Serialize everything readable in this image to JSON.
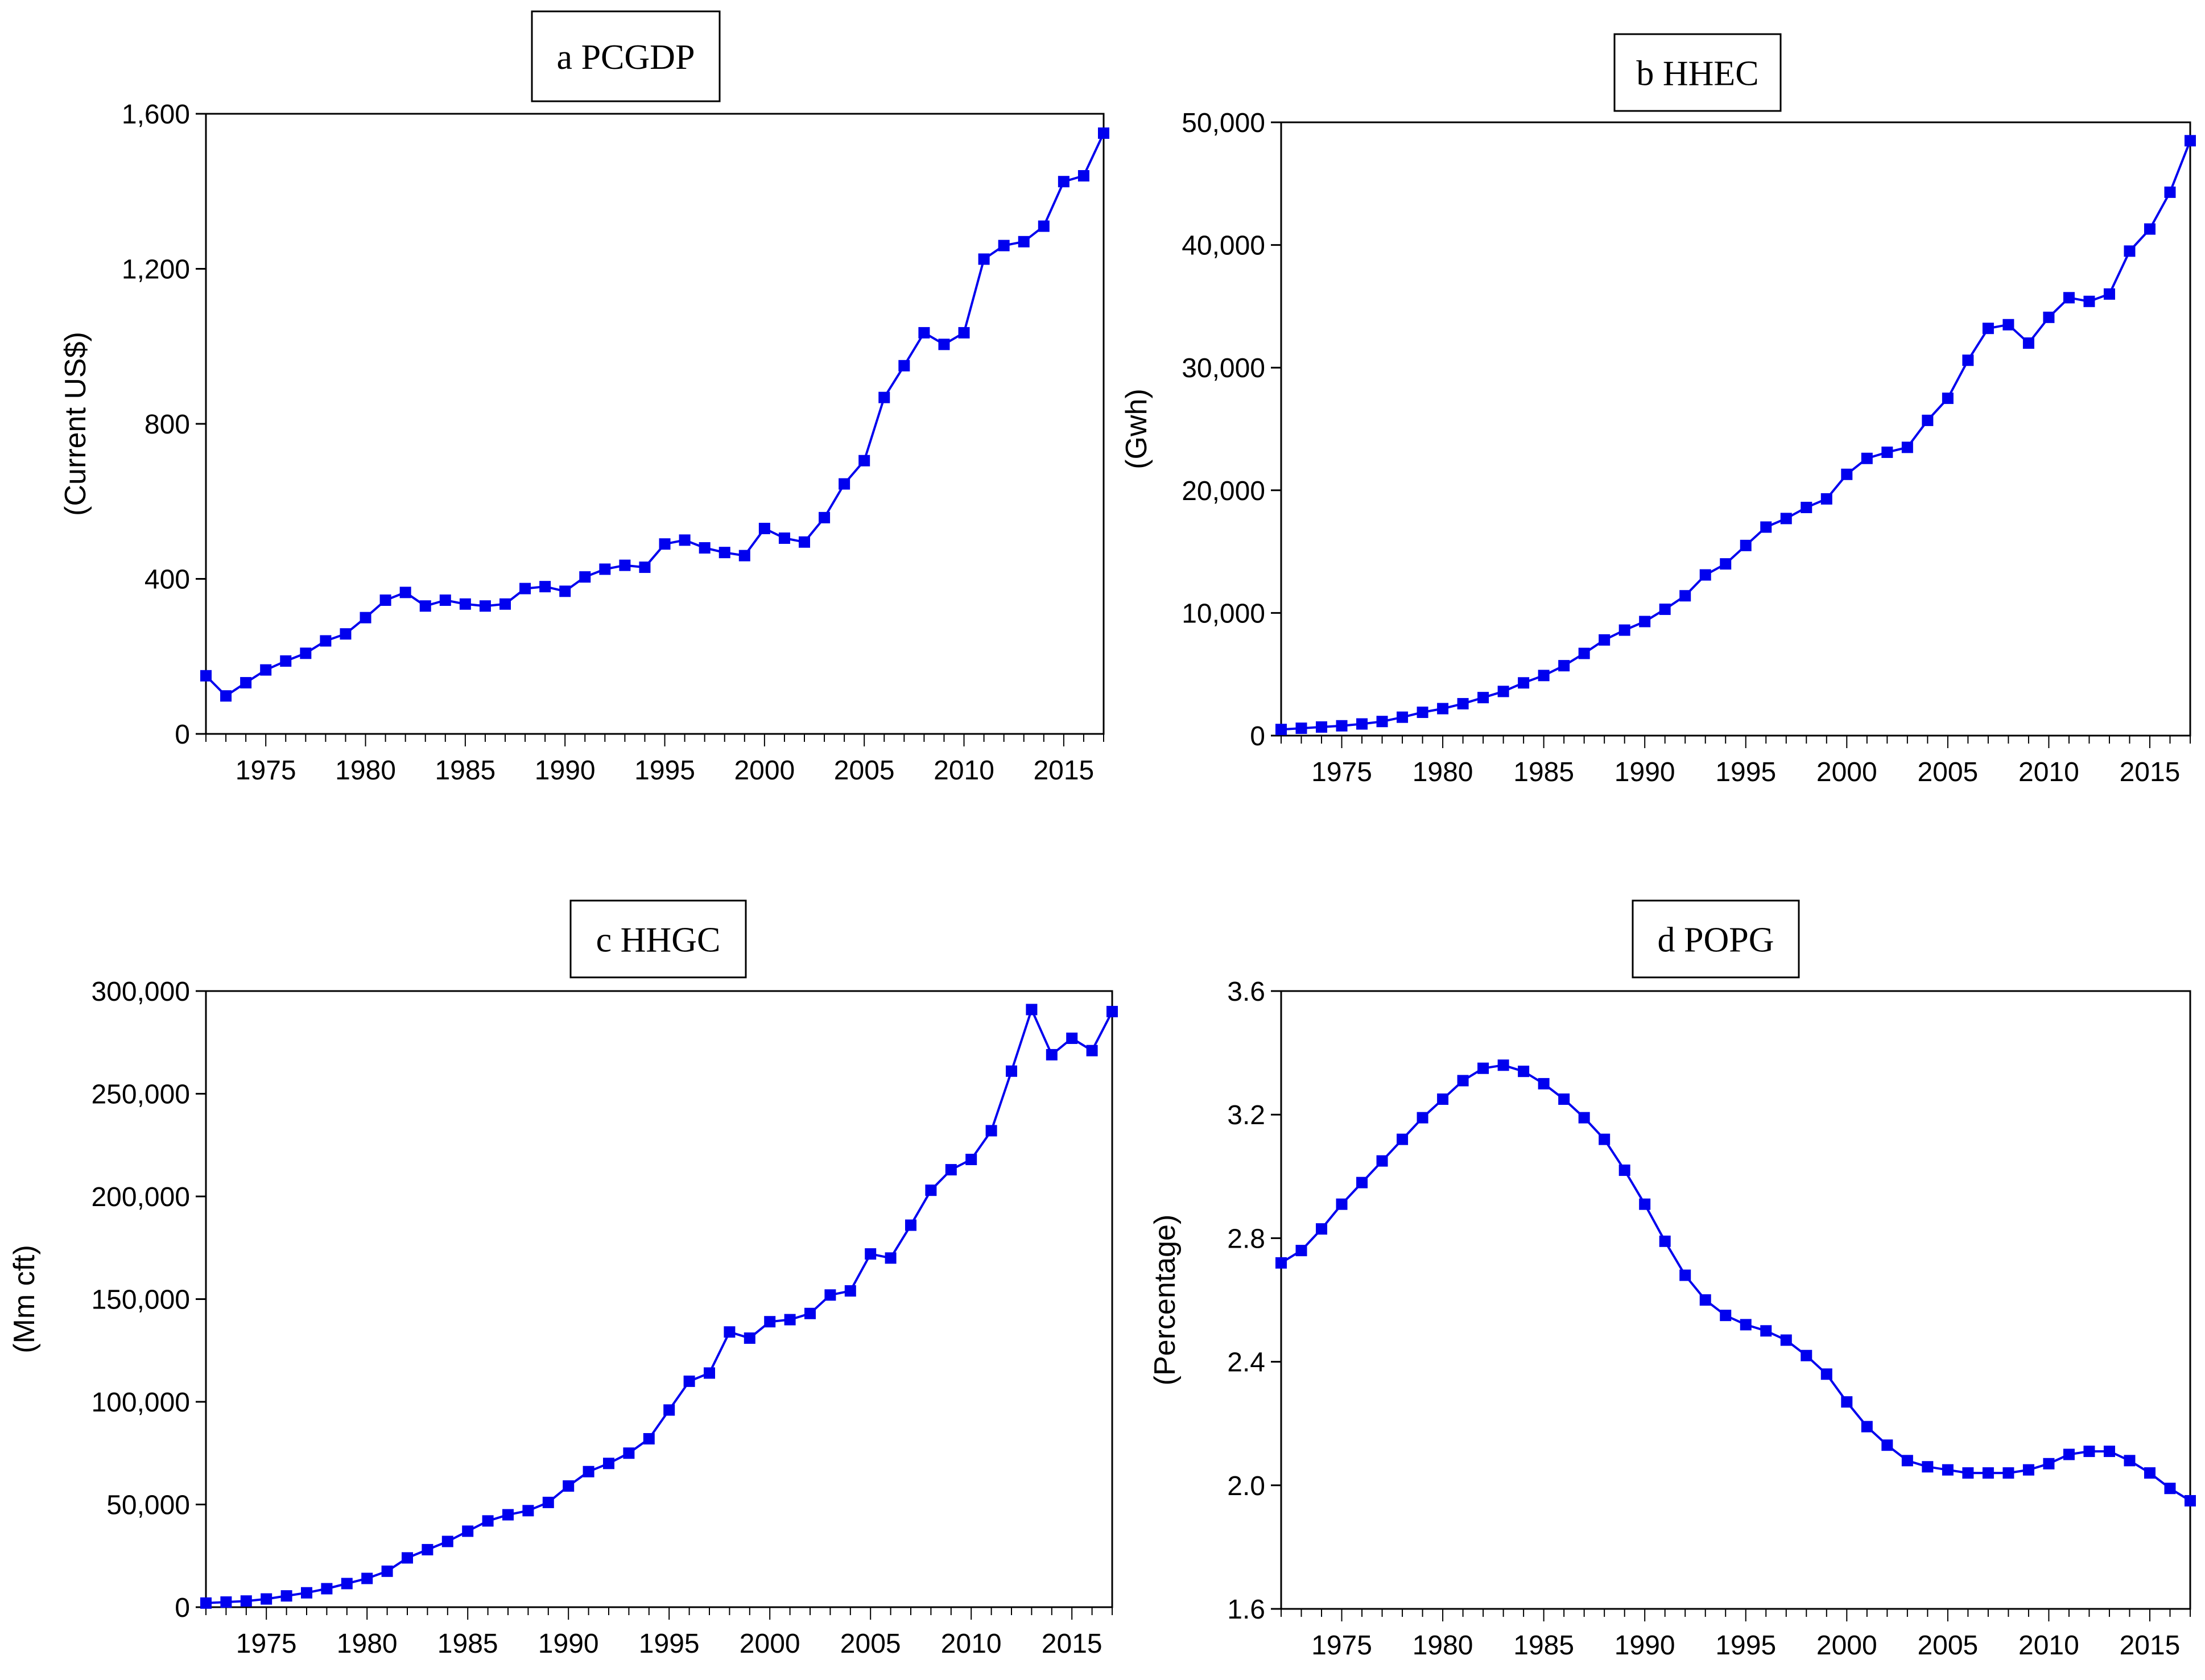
{
  "figure": {
    "x_tick_labels": [
      "1975",
      "1980",
      "1985",
      "1990",
      "1995",
      "2000",
      "2005",
      "2010",
      "2015"
    ],
    "series_color": "#0000ee"
  },
  "chart_data": [
    {
      "type": "line",
      "title": "a PCGDP",
      "ylabel": "(Current US$)",
      "xlabel": "",
      "xlim": [
        1972,
        2017
      ],
      "ylim": [
        0,
        1600
      ],
      "yticks": [
        0,
        400,
        800,
        1200,
        1600
      ],
      "ytick_labels": [
        "0",
        "400",
        "800",
        "1,200",
        "1,600"
      ],
      "x": [
        1972,
        1973,
        1974,
        1975,
        1976,
        1977,
        1978,
        1979,
        1980,
        1981,
        1982,
        1983,
        1984,
        1985,
        1986,
        1987,
        1988,
        1989,
        1990,
        1991,
        1992,
        1993,
        1994,
        1995,
        1996,
        1997,
        1998,
        1999,
        2000,
        2001,
        2002,
        2003,
        2004,
        2005,
        2006,
        2007,
        2008,
        2009,
        2010,
        2011,
        2012,
        2013,
        2014,
        2015,
        2016,
        2017
      ],
      "values": [
        150,
        98,
        132,
        165,
        188,
        208,
        240,
        258,
        300,
        345,
        365,
        330,
        345,
        335,
        330,
        335,
        375,
        380,
        368,
        405,
        425,
        435,
        430,
        490,
        500,
        480,
        468,
        460,
        530,
        505,
        495,
        558,
        645,
        705,
        868,
        950,
        1035,
        1005,
        1035,
        1225,
        1260,
        1270,
        1310,
        1425,
        1440,
        1550
      ]
    },
    {
      "type": "line",
      "title": "b HHEC",
      "ylabel": "(Gwh)",
      "xlabel": "",
      "xlim": [
        1972,
        2017
      ],
      "ylim": [
        0,
        50000
      ],
      "yticks": [
        0,
        10000,
        20000,
        30000,
        40000,
        50000
      ],
      "ytick_labels": [
        "0",
        "10,000",
        "20,000",
        "30,000",
        "40,000",
        "50,000"
      ],
      "x": [
        1972,
        1973,
        1974,
        1975,
        1976,
        1977,
        1978,
        1979,
        1980,
        1981,
        1982,
        1983,
        1984,
        1985,
        1986,
        1987,
        1988,
        1989,
        1990,
        1991,
        1992,
        1993,
        1994,
        1995,
        1996,
        1997,
        1998,
        1999,
        2000,
        2001,
        2002,
        2003,
        2004,
        2005,
        2006,
        2007,
        2008,
        2009,
        2010,
        2011,
        2012,
        2013,
        2014,
        2015,
        2016,
        2017
      ],
      "values": [
        500,
        600,
        700,
        800,
        950,
        1150,
        1500,
        1900,
        2200,
        2600,
        3100,
        3600,
        4300,
        4900,
        5700,
        6700,
        7800,
        8600,
        9300,
        10300,
        11400,
        13100,
        14000,
        15500,
        17000,
        17700,
        18600,
        19300,
        21300,
        22600,
        23100,
        23500,
        25700,
        27500,
        30600,
        33200,
        33500,
        32000,
        34100,
        35700,
        35400,
        36000,
        39500,
        41300,
        44300,
        48500
      ]
    },
    {
      "type": "line",
      "title": "c HHGC",
      "ylabel": "(Mm cft)",
      "xlabel": "",
      "xlim": [
        1972,
        2017
      ],
      "ylim": [
        0,
        300000
      ],
      "yticks": [
        0,
        50000,
        100000,
        150000,
        200000,
        250000,
        300000
      ],
      "ytick_labels": [
        "0",
        "50,000",
        "100,000",
        "150,000",
        "200,000",
        "250,000",
        "300,000"
      ],
      "x": [
        1972,
        1973,
        1974,
        1975,
        1976,
        1977,
        1978,
        1979,
        1980,
        1981,
        1982,
        1983,
        1984,
        1985,
        1986,
        1987,
        1988,
        1989,
        1990,
        1991,
        1992,
        1993,
        1994,
        1995,
        1996,
        1997,
        1998,
        1999,
        2000,
        2001,
        2002,
        2003,
        2004,
        2005,
        2006,
        2007,
        2008,
        2009,
        2010,
        2011,
        2012,
        2013,
        2014,
        2015,
        2016,
        2017
      ],
      "values": [
        2000,
        2500,
        3000,
        4000,
        5500,
        7000,
        9000,
        11500,
        14000,
        17500,
        24000,
        28000,
        32000,
        37000,
        42000,
        45000,
        47000,
        51000,
        59000,
        66000,
        70000,
        75000,
        82000,
        96000,
        110000,
        114000,
        134000,
        131000,
        139000,
        140000,
        143000,
        152000,
        154000,
        172000,
        170000,
        186000,
        203000,
        213000,
        218000,
        232000,
        261000,
        291000,
        269000,
        277000,
        271000,
        290000
      ]
    },
    {
      "type": "line",
      "title": "d POPG",
      "ylabel": "(Percentage)",
      "xlabel": "",
      "xlim": [
        1972,
        2017
      ],
      "ylim": [
        1.6,
        3.6
      ],
      "yticks": [
        1.6,
        2.0,
        2.4,
        2.8,
        3.2,
        3.6
      ],
      "ytick_labels": [
        "1.6",
        "2.0",
        "2.4",
        "2.8",
        "3.2",
        "3.6"
      ],
      "x": [
        1972,
        1973,
        1974,
        1975,
        1976,
        1977,
        1978,
        1979,
        1980,
        1981,
        1982,
        1983,
        1984,
        1985,
        1986,
        1987,
        1988,
        1989,
        1990,
        1991,
        1992,
        1993,
        1994,
        1995,
        1996,
        1997,
        1998,
        1999,
        2000,
        2001,
        2002,
        2003,
        2004,
        2005,
        2006,
        2007,
        2008,
        2009,
        2010,
        2011,
        2012,
        2013,
        2014,
        2015,
        2016,
        2017
      ],
      "values": [
        2.72,
        2.76,
        2.83,
        2.91,
        2.98,
        3.05,
        3.12,
        3.19,
        3.25,
        3.31,
        3.35,
        3.36,
        3.34,
        3.3,
        3.25,
        3.19,
        3.12,
        3.02,
        2.91,
        2.79,
        2.68,
        2.6,
        2.55,
        2.52,
        2.5,
        2.47,
        2.42,
        2.36,
        2.27,
        2.19,
        2.13,
        2.08,
        2.06,
        2.05,
        2.04,
        2.04,
        2.04,
        2.05,
        2.07,
        2.1,
        2.11,
        2.11,
        2.08,
        2.04,
        1.99,
        1.95
      ]
    }
  ]
}
